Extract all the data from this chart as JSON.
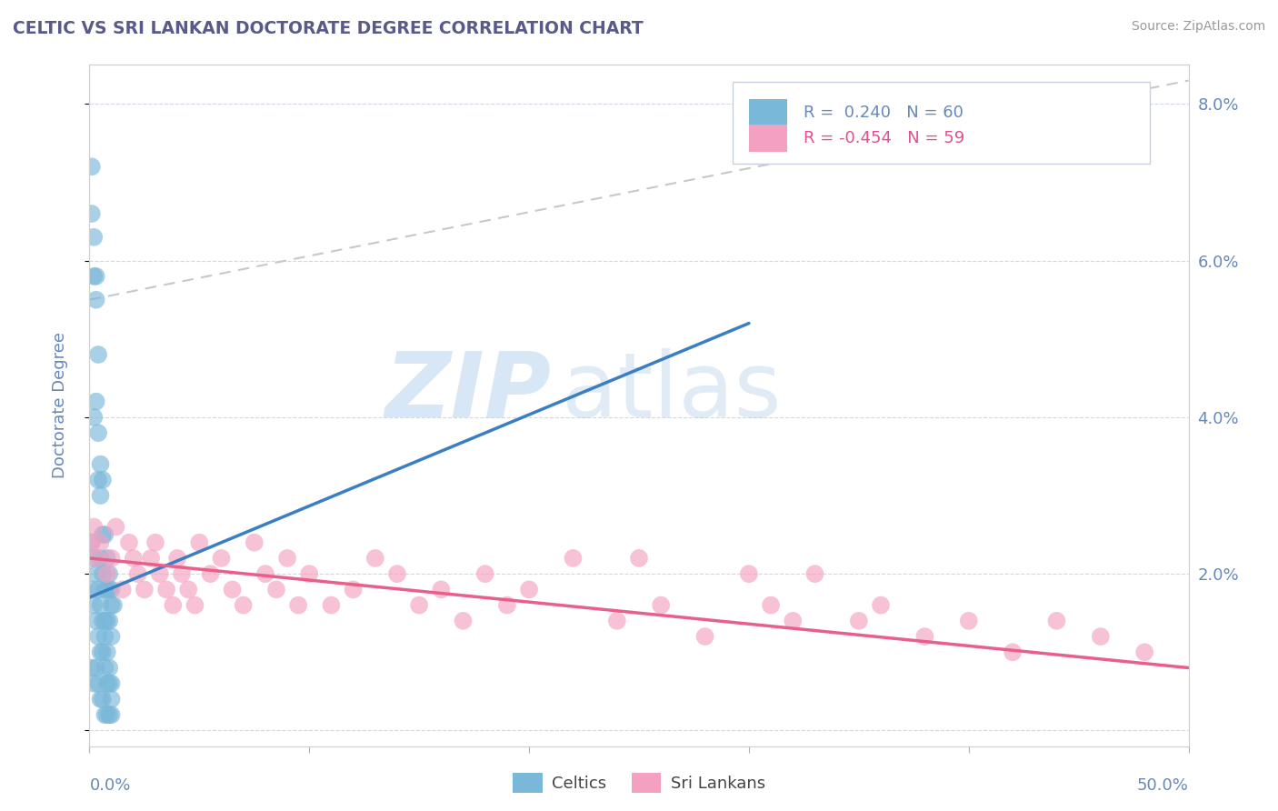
{
  "title": "CELTIC VS SRI LANKAN DOCTORATE DEGREE CORRELATION CHART",
  "source": "Source: ZipAtlas.com",
  "ylabel": "Doctorate Degree",
  "x_range": [
    0.0,
    0.5
  ],
  "y_range": [
    -0.002,
    0.085
  ],
  "y_ticks": [
    0.0,
    0.02,
    0.04,
    0.06,
    0.08
  ],
  "y_tick_labels": [
    "",
    "2.0%",
    "4.0%",
    "6.0%",
    "8.0%"
  ],
  "celtics_R": 0.24,
  "celtics_N": 60,
  "srilankans_R": -0.454,
  "srilankans_N": 59,
  "celtics_color": "#7ab8d9",
  "srilankans_color": "#f4a0c0",
  "celtics_line_color": "#3a7fc1",
  "srilankans_line_color": "#e8608a",
  "grey_line_color": "#c8c8c8",
  "background_color": "#ffffff",
  "watermark_zip": "ZIP",
  "watermark_atlas": "atlas",
  "title_color": "#5a5a8a",
  "axis_color": "#6688bb",
  "legend_label_celtics": "Celtics",
  "legend_label_srilankans": "Sri Lankans",
  "celtics_x": [
    0.001,
    0.001,
    0.002,
    0.002,
    0.002,
    0.003,
    0.003,
    0.003,
    0.004,
    0.004,
    0.004,
    0.005,
    0.005,
    0.005,
    0.006,
    0.006,
    0.006,
    0.007,
    0.007,
    0.007,
    0.008,
    0.008,
    0.008,
    0.009,
    0.009,
    0.009,
    0.01,
    0.01,
    0.01,
    0.011,
    0.001,
    0.001,
    0.001,
    0.002,
    0.002,
    0.002,
    0.003,
    0.003,
    0.003,
    0.004,
    0.004,
    0.004,
    0.005,
    0.005,
    0.005,
    0.006,
    0.006,
    0.006,
    0.007,
    0.007,
    0.007,
    0.008,
    0.008,
    0.008,
    0.009,
    0.009,
    0.009,
    0.01,
    0.01,
    0.01
  ],
  "celtics_y": [
    0.072,
    0.066,
    0.063,
    0.058,
    0.04,
    0.058,
    0.055,
    0.042,
    0.048,
    0.038,
    0.032,
    0.034,
    0.03,
    0.022,
    0.032,
    0.025,
    0.02,
    0.025,
    0.018,
    0.014,
    0.022,
    0.018,
    0.014,
    0.02,
    0.018,
    0.014,
    0.018,
    0.016,
    0.012,
    0.016,
    0.024,
    0.018,
    0.008,
    0.022,
    0.016,
    0.006,
    0.02,
    0.014,
    0.008,
    0.018,
    0.012,
    0.006,
    0.016,
    0.01,
    0.004,
    0.014,
    0.01,
    0.004,
    0.012,
    0.008,
    0.002,
    0.01,
    0.006,
    0.002,
    0.008,
    0.006,
    0.002,
    0.006,
    0.004,
    0.002
  ],
  "srilankans_x": [
    0.001,
    0.002,
    0.003,
    0.005,
    0.008,
    0.01,
    0.012,
    0.015,
    0.018,
    0.02,
    0.022,
    0.025,
    0.028,
    0.03,
    0.032,
    0.035,
    0.038,
    0.04,
    0.042,
    0.045,
    0.048,
    0.05,
    0.055,
    0.06,
    0.065,
    0.07,
    0.075,
    0.08,
    0.085,
    0.09,
    0.095,
    0.1,
    0.11,
    0.12,
    0.13,
    0.14,
    0.15,
    0.16,
    0.17,
    0.18,
    0.19,
    0.2,
    0.22,
    0.24,
    0.25,
    0.26,
    0.28,
    0.3,
    0.31,
    0.32,
    0.33,
    0.35,
    0.36,
    0.38,
    0.4,
    0.42,
    0.44,
    0.46,
    0.48
  ],
  "srilankans_y": [
    0.024,
    0.026,
    0.022,
    0.024,
    0.02,
    0.022,
    0.026,
    0.018,
    0.024,
    0.022,
    0.02,
    0.018,
    0.022,
    0.024,
    0.02,
    0.018,
    0.016,
    0.022,
    0.02,
    0.018,
    0.016,
    0.024,
    0.02,
    0.022,
    0.018,
    0.016,
    0.024,
    0.02,
    0.018,
    0.022,
    0.016,
    0.02,
    0.016,
    0.018,
    0.022,
    0.02,
    0.016,
    0.018,
    0.014,
    0.02,
    0.016,
    0.018,
    0.022,
    0.014,
    0.022,
    0.016,
    0.012,
    0.02,
    0.016,
    0.014,
    0.02,
    0.014,
    0.016,
    0.012,
    0.014,
    0.01,
    0.014,
    0.012,
    0.01
  ],
  "celtic_line_x0": 0.0,
  "celtic_line_y0": 0.017,
  "celtic_line_x1": 0.3,
  "celtic_line_y1": 0.052,
  "sri_line_x0": 0.0,
  "sri_line_y0": 0.022,
  "sri_line_x1": 0.5,
  "sri_line_y1": 0.008,
  "grey_line_x0": 0.0,
  "grey_line_y0": 0.055,
  "grey_line_x1": 0.5,
  "grey_line_y1": 0.083
}
